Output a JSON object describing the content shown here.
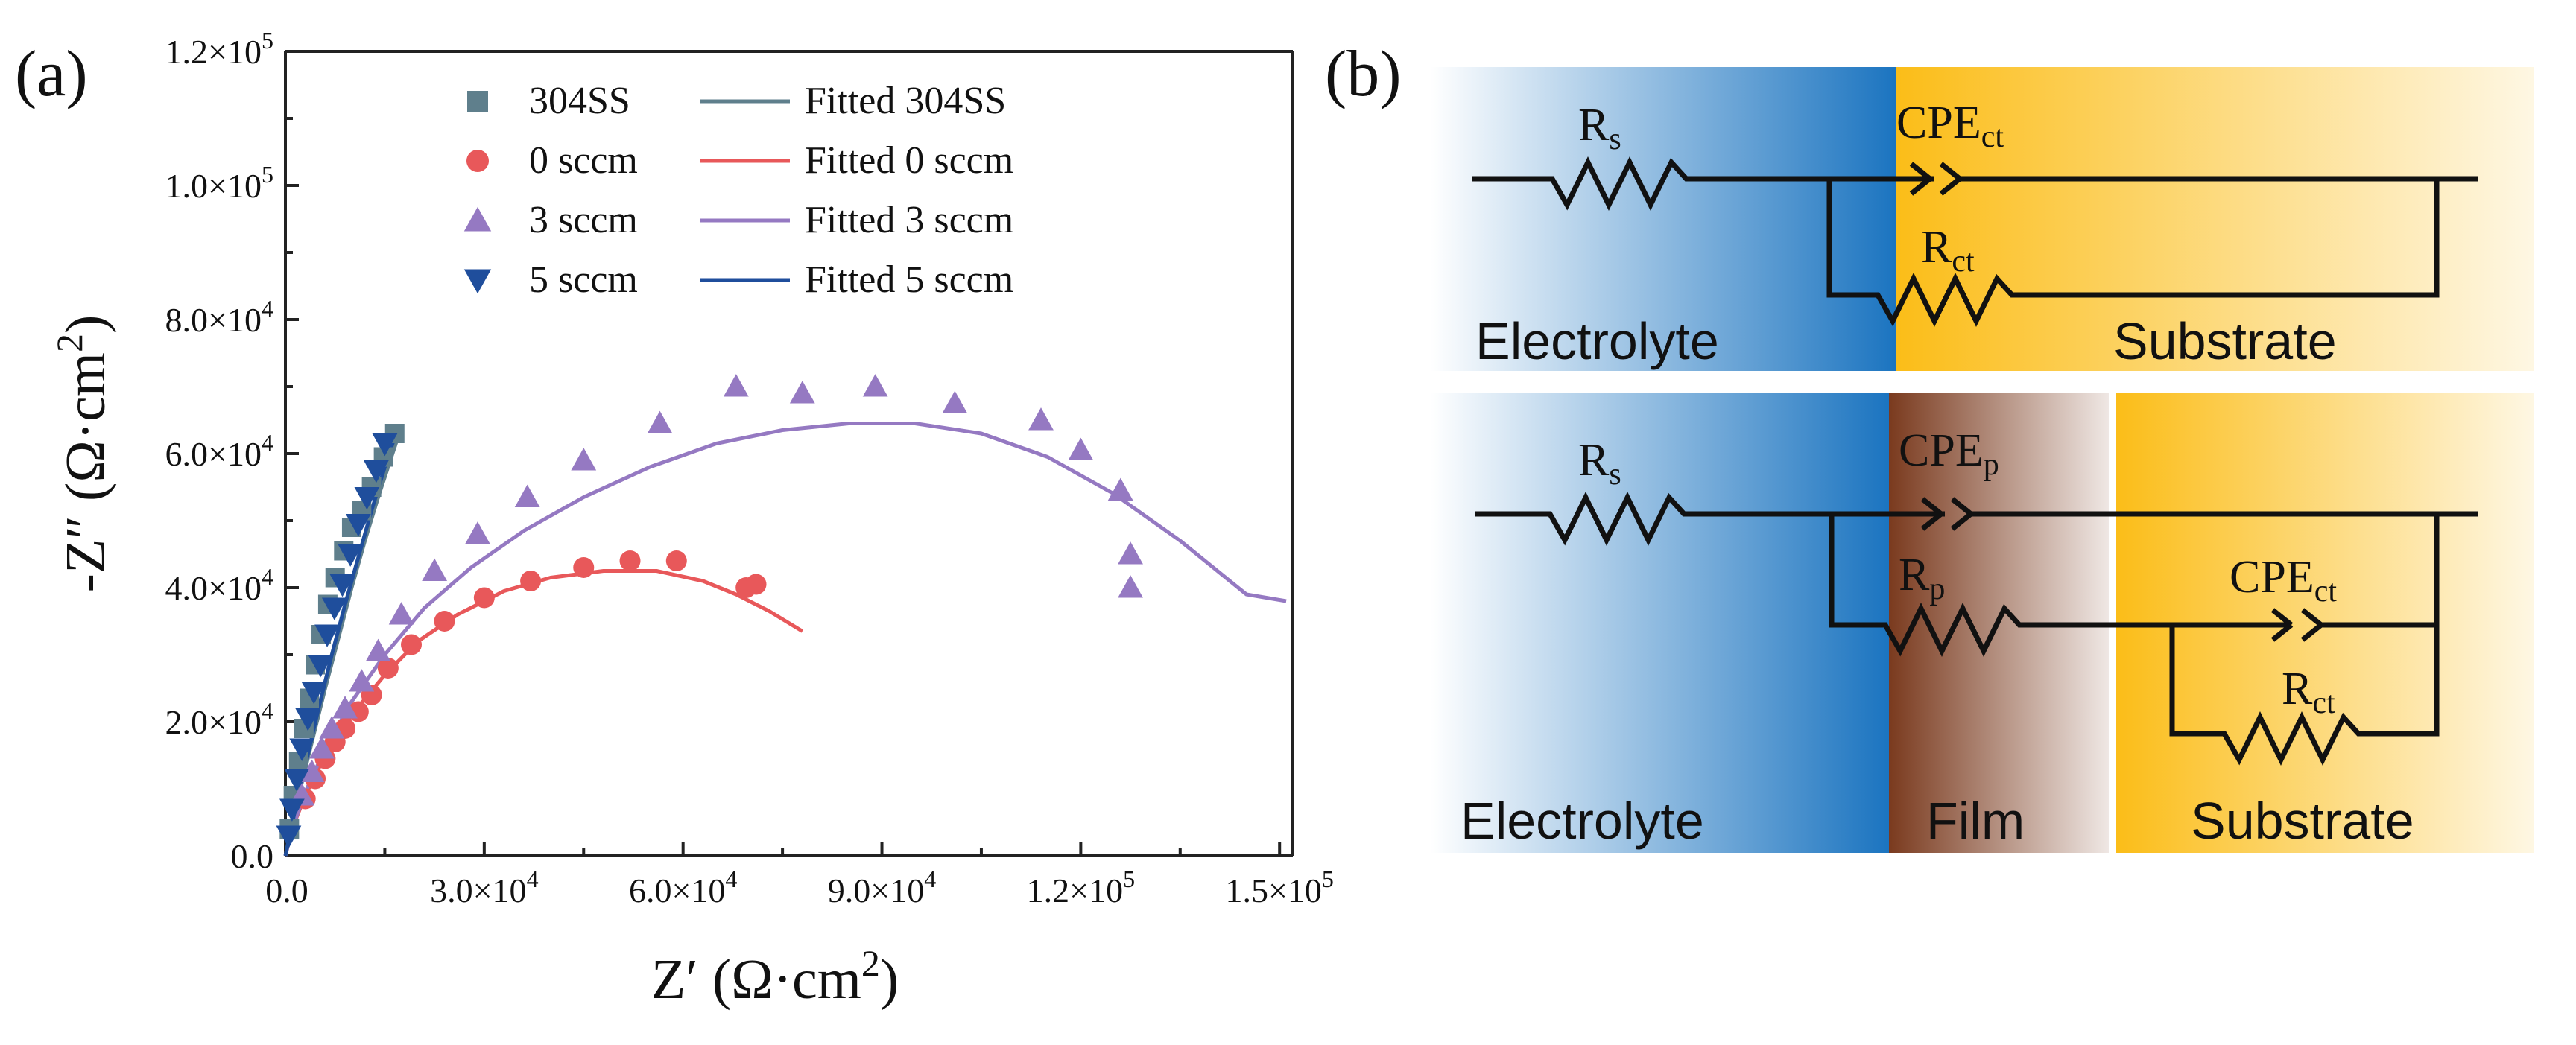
{
  "chart_data": [
    {
      "type": "scatter",
      "panel_label": "(a)",
      "xlabel": {
        "main": "Z′ (Ω·cm",
        "sup": "2",
        "end": ")"
      },
      "ylabel": {
        "main": "-Z″ (Ω·cm",
        "sup": "2",
        "end": ")"
      },
      "xlim": [
        0,
        152000
      ],
      "ylim": [
        0,
        120000
      ],
      "x_ticks": [
        {
          "value": 0,
          "mant": "0.0",
          "exp": ""
        },
        {
          "value": 30000,
          "mant": "3.0×10",
          "exp": "4"
        },
        {
          "value": 60000,
          "mant": "6.0×10",
          "exp": "4"
        },
        {
          "value": 90000,
          "mant": "9.0×10",
          "exp": "4"
        },
        {
          "value": 120000,
          "mant": "1.2×10",
          "exp": "5"
        },
        {
          "value": 150000,
          "mant": "1.5×10",
          "exp": "5"
        }
      ],
      "y_ticks": [
        {
          "value": 0,
          "mant": "0.0",
          "exp": ""
        },
        {
          "value": 20000,
          "mant": "2.0×10",
          "exp": "4"
        },
        {
          "value": 40000,
          "mant": "4.0×10",
          "exp": "4"
        },
        {
          "value": 60000,
          "mant": "6.0×10",
          "exp": "4"
        },
        {
          "value": 80000,
          "mant": "8.0×10",
          "exp": "4"
        },
        {
          "value": 100000,
          "mant": "1.0×10",
          "exp": "5"
        },
        {
          "value": 120000,
          "mant": "1.2×10",
          "exp": "5"
        }
      ],
      "legend_position": "top",
      "series": [
        {
          "name": "304SS",
          "marker": "square",
          "color": "#5f7f8c",
          "points": [
            [
              600,
              4000
            ],
            [
              1200,
              9000
            ],
            [
              2000,
              14000
            ],
            [
              2800,
              19000
            ],
            [
              3600,
              23500
            ],
            [
              4500,
              28500
            ],
            [
              5400,
              33000
            ],
            [
              6400,
              37500
            ],
            [
              7500,
              41500
            ],
            [
              8800,
              45500
            ],
            [
              10000,
              49000
            ],
            [
              11500,
              51500
            ],
            [
              13000,
              55000
            ],
            [
              14800,
              59500
            ],
            [
              16500,
              63000
            ]
          ]
        },
        {
          "name": "0 sccm",
          "marker": "circle",
          "color": "#e8585a",
          "points": [
            [
              3000,
              8500
            ],
            [
              4500,
              11500
            ],
            [
              6000,
              14500
            ],
            [
              7500,
              17000
            ],
            [
              9000,
              19000
            ],
            [
              11000,
              21500
            ],
            [
              13000,
              24000
            ],
            [
              15500,
              28000
            ],
            [
              19000,
              31500
            ],
            [
              24000,
              35000
            ],
            [
              30000,
              38500
            ],
            [
              37000,
              41000
            ],
            [
              45000,
              43000
            ],
            [
              52000,
              44000
            ],
            [
              59000,
              44000
            ],
            [
              69500,
              40000
            ],
            [
              71000,
              40500
            ]
          ]
        },
        {
          "name": "3 sccm",
          "marker": "triangle-up",
          "color": "#9579c2",
          "points": [
            [
              2500,
              9000
            ],
            [
              4000,
              12500
            ],
            [
              5500,
              16000
            ],
            [
              7000,
              19000
            ],
            [
              9000,
              22000
            ],
            [
              11500,
              26000
            ],
            [
              14000,
              30500
            ],
            [
              17500,
              36000
            ],
            [
              22500,
              42500
            ],
            [
              29000,
              48000
            ],
            [
              36500,
              53500
            ],
            [
              45000,
              59000
            ],
            [
              56500,
              64500
            ],
            [
              68000,
              70000
            ],
            [
              78000,
              69000
            ],
            [
              89000,
              70000
            ],
            [
              101000,
              67500
            ],
            [
              114000,
              65000
            ],
            [
              120000,
              60500
            ],
            [
              126000,
              54500
            ],
            [
              127500,
              45000
            ],
            [
              127500,
              40000
            ]
          ]
        },
        {
          "name": "5 sccm",
          "marker": "triangle-down",
          "color": "#1f4e9c",
          "points": [
            [
              500,
              3000
            ],
            [
              1000,
              7000
            ],
            [
              1700,
              11500
            ],
            [
              2500,
              16000
            ],
            [
              3400,
              20500
            ],
            [
              4300,
              24500
            ],
            [
              5300,
              28500
            ],
            [
              6300,
              33000
            ],
            [
              7400,
              37000
            ],
            [
              8600,
              40500
            ],
            [
              9800,
              45000
            ],
            [
              11000,
              49500
            ],
            [
              12300,
              53500
            ],
            [
              13700,
              57500
            ],
            [
              15000,
              61500
            ]
          ]
        },
        {
          "name": "Fitted 304SS",
          "marker": "line",
          "color": "#5f7f8c",
          "points": [
            [
              0,
              0
            ],
            [
              2000,
              9000
            ],
            [
              4000,
              17000
            ],
            [
              6000,
              25000
            ],
            [
              8000,
              32500
            ],
            [
              10000,
              40000
            ],
            [
              12000,
              47000
            ],
            [
              14000,
              53500
            ],
            [
              16000,
              59500
            ],
            [
              17000,
              62500
            ]
          ]
        },
        {
          "name": "Fitted 0 sccm",
          "marker": "line",
          "color": "#e8585a",
          "points": [
            [
              0,
              0
            ],
            [
              1000,
              4000
            ],
            [
              3000,
              9000
            ],
            [
              6000,
              15000
            ],
            [
              10000,
              21000
            ],
            [
              15000,
              27000
            ],
            [
              20000,
              32000
            ],
            [
              26000,
              36000
            ],
            [
              33000,
              39500
            ],
            [
              40000,
              41500
            ],
            [
              48000,
              42500
            ],
            [
              56000,
              42500
            ],
            [
              63000,
              41000
            ],
            [
              68000,
              39000
            ],
            [
              73000,
              36500
            ],
            [
              78000,
              33500
            ]
          ]
        },
        {
          "name": "Fitted 3 sccm",
          "marker": "line",
          "color": "#9579c2",
          "points": [
            [
              0,
              0
            ],
            [
              1000,
              4000
            ],
            [
              3000,
              9500
            ],
            [
              6000,
              16000
            ],
            [
              10000,
              23000
            ],
            [
              15000,
              30000
            ],
            [
              21000,
              37000
            ],
            [
              28000,
              43000
            ],
            [
              36000,
              48500
            ],
            [
              45000,
              53500
            ],
            [
              55000,
              58000
            ],
            [
              65000,
              61500
            ],
            [
              75000,
              63500
            ],
            [
              85000,
              64500
            ],
            [
              95000,
              64500
            ],
            [
              105000,
              63000
            ],
            [
              115000,
              59500
            ],
            [
              125000,
              54000
            ],
            [
              135000,
              47000
            ],
            [
              145000,
              39000
            ],
            [
              151000,
              38000
            ]
          ]
        },
        {
          "name": "Fitted 5 sccm",
          "marker": "line",
          "color": "#1f4e9c",
          "points": [
            [
              0,
              0
            ],
            [
              1500,
              7000
            ],
            [
              3000,
              13500
            ],
            [
              5000,
              22000
            ],
            [
              7000,
              30000
            ],
            [
              9000,
              37500
            ],
            [
              11000,
              44500
            ],
            [
              13000,
              51500
            ],
            [
              15000,
              58000
            ],
            [
              16500,
              62500
            ]
          ]
        }
      ]
    }
  ],
  "circuit_panel": {
    "panel_label": "(b)",
    "top": {
      "left_region": "Electrolyte",
      "right_region": "Substrate",
      "resistor_1": {
        "base": "R",
        "sub": "s"
      },
      "cpe": {
        "base": "CPE",
        "sub": "ct"
      },
      "resistor_2": {
        "base": "R",
        "sub": "ct"
      }
    },
    "bottom": {
      "left_region": "Electrolyte",
      "middle_region": "Film",
      "right_region": "Substrate",
      "resistor_1": {
        "base": "R",
        "sub": "s"
      },
      "cpe_1": {
        "base": "CPE",
        "sub": "p"
      },
      "resistor_2": {
        "base": "R",
        "sub": "p"
      },
      "cpe_2": {
        "base": "CPE",
        "sub": "ct"
      },
      "resistor_3": {
        "base": "R",
        "sub": "ct"
      }
    },
    "colors": {
      "electrolyte": "#1b74c0",
      "substrate": "#fbbd18",
      "film": "#7a3a1e"
    }
  }
}
